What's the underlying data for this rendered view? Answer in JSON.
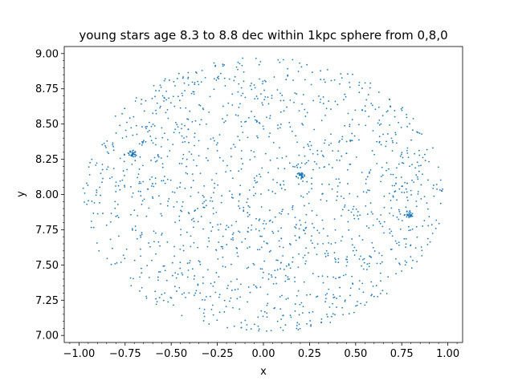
{
  "chart_data": {
    "type": "scatter",
    "title": "young stars age 8.3 to 8.8 dec within 1kpc sphere from 0,8,0",
    "xlabel": "x",
    "ylabel": "y",
    "xlim": [
      -1.08,
      1.08
    ],
    "ylim": [
      6.95,
      9.05
    ],
    "xticks": [
      "−1.00",
      "−0.75",
      "−0.50",
      "−0.25",
      "0.00",
      "0.25",
      "0.50",
      "0.75",
      "1.00"
    ],
    "xtick_values": [
      -1.0,
      -0.75,
      -0.5,
      -0.25,
      0.0,
      0.25,
      0.5,
      0.75,
      1.0
    ],
    "yticks": [
      "7.00",
      "7.25",
      "7.50",
      "7.75",
      "8.00",
      "8.25",
      "8.50",
      "8.75",
      "9.00"
    ],
    "ytick_values": [
      7.0,
      7.25,
      7.5,
      7.75,
      8.0,
      8.25,
      8.5,
      8.75,
      9.0
    ],
    "grid": false,
    "marker_color": "#1f77b4",
    "point_count_estimate": 1500,
    "distribution": "points spread over a disk of radius 1 centered at (0, 8)",
    "clusters": [
      {
        "x": -0.71,
        "y": 8.29
      },
      {
        "x": 0.2,
        "y": 8.13
      },
      {
        "x": 0.79,
        "y": 7.86
      }
    ]
  }
}
